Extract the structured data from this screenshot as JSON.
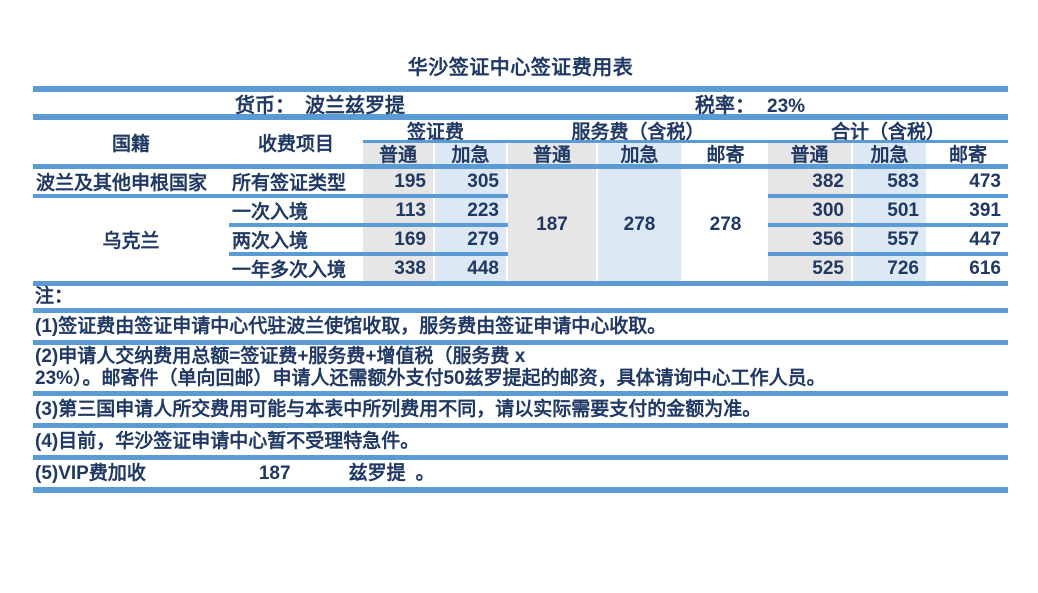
{
  "title": "华沙签证中心签证费用表",
  "meta": {
    "currency_label": "货币：",
    "currency_value": "波兰兹罗提",
    "tax_label": "税率：",
    "tax_value": "23%"
  },
  "table": {
    "headers": {
      "nationality": "国籍",
      "fee_item": "收费项目",
      "visa_fee": "签证费",
      "service_fee": "服务费（含税）",
      "total": "合计（含税）",
      "ordinary": "普通",
      "express": "加急",
      "mail": "邮寄"
    },
    "rows": [
      {
        "nationality": "波兰及其他申根国家",
        "item": "所有签证类型",
        "visa_ordinary": "195",
        "visa_express": "305",
        "total_ordinary": "382",
        "total_express": "583",
        "total_mail": "473"
      },
      {
        "nationality": "乌克兰",
        "item": "一次入境",
        "visa_ordinary": "113",
        "visa_express": "223",
        "total_ordinary": "300",
        "total_express": "501",
        "total_mail": "391"
      },
      {
        "item": "两次入境",
        "visa_ordinary": "169",
        "visa_express": "279",
        "total_ordinary": "356",
        "total_express": "557",
        "total_mail": "447"
      },
      {
        "item": "一年多次入境",
        "visa_ordinary": "338",
        "visa_express": "448",
        "total_ordinary": "525",
        "total_express": "726",
        "total_mail": "616"
      }
    ],
    "service_merged": {
      "ordinary": "187",
      "express": "278",
      "mail": "278"
    }
  },
  "notes": {
    "label": "注：",
    "items": [
      "(1)签证费由签证申请中心代驻波兰使馆收取，服务费由签证申请中心收取。",
      "(2)申请人交纳费用总额=签证费+服务费+增值税（服务费 x",
      "23%）。邮寄件（单向回邮）申请人还需额外支付50兹罗提起的邮资，具体请询中心工作人员。",
      "(3)第三国申请人所交费用可能与本表中所列费用不同，请以实际需要支付的金额为准。",
      "(4)目前，华沙签证申请中心暂不受理特急件。"
    ],
    "note5": {
      "prefix": "(5)VIP费加收",
      "amount": "187",
      "unit": "兹罗提",
      "suffix": "。"
    }
  },
  "colors": {
    "bar": "#5B9BD5",
    "ink": "#1F3864",
    "gray_fill": "#E7E6E6",
    "blue_fill": "#DCE9F5"
  }
}
